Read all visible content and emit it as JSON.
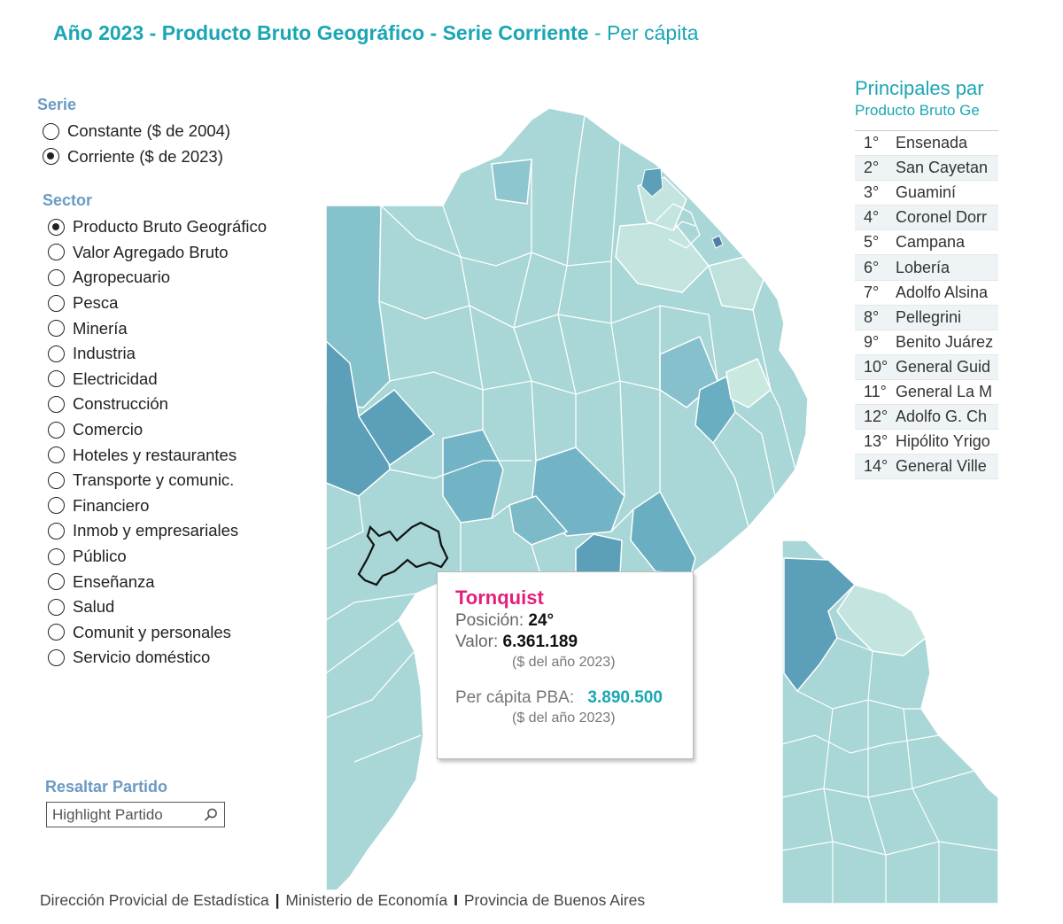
{
  "header": {
    "title_bold": "Año 2023 - Producto Bruto Geográfico - Serie Corriente",
    "title_thin": " - Per cápita"
  },
  "serie": {
    "label": "Serie",
    "options": [
      {
        "label": "Constante ($ de 2004)",
        "checked": false
      },
      {
        "label": "Corriente ($ de 2023)",
        "checked": true
      }
    ]
  },
  "sector": {
    "label": "Sector",
    "options": [
      {
        "label": "Producto Bruto Geográfico",
        "checked": true
      },
      {
        "label": "Valor Agregado Bruto",
        "checked": false
      },
      {
        "label": "Agropecuario",
        "checked": false
      },
      {
        "label": "Pesca",
        "checked": false
      },
      {
        "label": "Minería",
        "checked": false
      },
      {
        "label": "Industria",
        "checked": false
      },
      {
        "label": "Electricidad",
        "checked": false
      },
      {
        "label": "Construcción",
        "checked": false
      },
      {
        "label": "Comercio",
        "checked": false
      },
      {
        "label": "Hoteles y restaurantes",
        "checked": false
      },
      {
        "label": "Transporte y comunic.",
        "checked": false
      },
      {
        "label": "Financiero",
        "checked": false
      },
      {
        "label": "Inmob y empresariales",
        "checked": false
      },
      {
        "label": "Público",
        "checked": false
      },
      {
        "label": "Enseñanza",
        "checked": false
      },
      {
        "label": "Salud",
        "checked": false
      },
      {
        "label": "Comunit y personales",
        "checked": false
      },
      {
        "label": "Servicio doméstico",
        "checked": false
      }
    ]
  },
  "highlight": {
    "label": "Resaltar Partido",
    "placeholder": "Highlight Partido",
    "icon": "search-icon"
  },
  "footer": {
    "org1": "Dirección Provicial de Estadística",
    "sep1": "|",
    "org2": "Ministerio de Economía",
    "sep2": "I",
    "org3": "Provincia de Buenos Aires"
  },
  "ranking": {
    "title": "Principales par",
    "subtitle": "Producto Bruto Ge",
    "rows": [
      {
        "pos": "1°",
        "name": "Ensenada"
      },
      {
        "pos": "2°",
        "name": "San Cayetan"
      },
      {
        "pos": "3°",
        "name": "Guaminí"
      },
      {
        "pos": "4°",
        "name": "Coronel Dorr"
      },
      {
        "pos": "5°",
        "name": "Campana"
      },
      {
        "pos": "6°",
        "name": "Lobería"
      },
      {
        "pos": "7°",
        "name": "Adolfo Alsina"
      },
      {
        "pos": "8°",
        "name": "Pellegrini"
      },
      {
        "pos": "9°",
        "name": "Benito Juárez"
      },
      {
        "pos": "10°",
        "name": "General Guid"
      },
      {
        "pos": "11°",
        "name": "General La M"
      },
      {
        "pos": "12°",
        "name": "Adolfo G. Ch"
      },
      {
        "pos": "13°",
        "name": "Hipólito Yrigo"
      },
      {
        "pos": "14°",
        "name": "General Ville"
      }
    ]
  },
  "tooltip": {
    "partido": "Tornquist",
    "posicion_label": "Posición:",
    "posicion": "24°",
    "valor_label": "Valor:",
    "valor": "6.361.189",
    "valor_note": "($ del año 2023)",
    "pc_label": "Per cápita PBA:",
    "pc_value": "3.890.500",
    "pc_note": "($ del año 2023)"
  },
  "colors": {
    "title": "#1aa6b4",
    "tooltip_name": "#e2207a",
    "map_light": "#c3e4df",
    "map_mid": "#9fd0d4",
    "map_dark": "#5c9fb8",
    "highlight_outline": "#111111"
  }
}
